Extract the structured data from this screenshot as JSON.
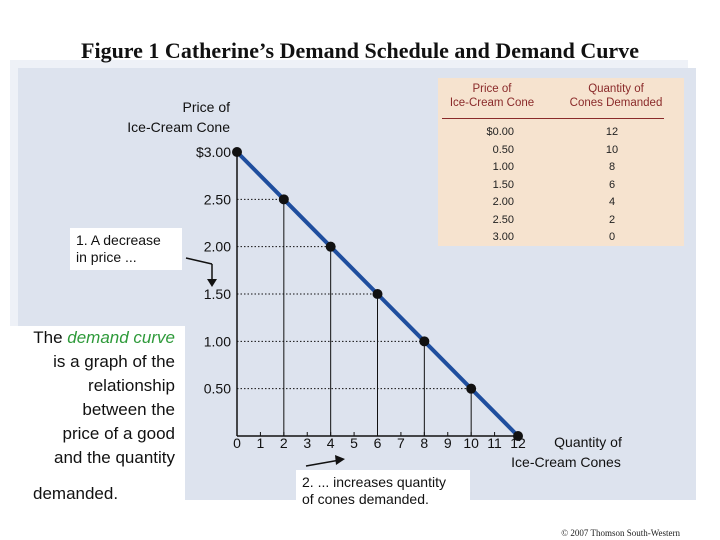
{
  "title": "Figure 1 Catherine’s Demand Schedule and Demand Curve",
  "table": {
    "header_price": [
      "Price of",
      "Ice-Cream Cone"
    ],
    "header_quantity": [
      "Quantity of",
      "Cones Demanded"
    ],
    "prices": [
      "$0.00",
      "0.50",
      "1.00",
      "1.50",
      "2.00",
      "2.50",
      "3.00"
    ],
    "quantities": [
      "12",
      "10",
      "8",
      "6",
      "4",
      "2",
      "0"
    ]
  },
  "notes": {
    "decrease_line1": "1. A decrease",
    "decrease_line2": "in price ...",
    "increase_line1": "2. ... increases quantity",
    "increase_line2": "of cones demanded."
  },
  "definition": {
    "prefix": "The ",
    "highlight": "demand curve",
    "rest": [
      "is a graph of the",
      "relationship",
      "between the",
      "price of a good",
      "and the quantity"
    ],
    "last": "demanded."
  },
  "copyright": "© 2007 Thomson South-Western",
  "colors": {
    "curve": "#1f4e9e",
    "point": "#111111",
    "panel": "#dde3ee",
    "table_bg": "#f6e3cf",
    "table_header": "#8a2a2a",
    "highlight": "#2e9a3a"
  },
  "chart_data": {
    "type": "line",
    "ylabel": [
      "Price of",
      "Ice-Cream Cone"
    ],
    "xlabel": [
      "Quantity of",
      "Ice-Cream Cones"
    ],
    "x_ticks": [
      "0",
      "1",
      "2",
      "3",
      "4",
      "5",
      "6",
      "7",
      "8",
      "9",
      "10",
      "11",
      "12"
    ],
    "y_tick_labels": [
      {
        "value": 3.0,
        "label": "$3.00"
      },
      {
        "value": 2.5,
        "label": "2.50"
      },
      {
        "value": 2.0,
        "label": "2.00"
      },
      {
        "value": 1.5,
        "label": "1.50"
      },
      {
        "value": 1.0,
        "label": "1.00"
      },
      {
        "value": 0.5,
        "label": "0.50"
      }
    ],
    "xlim": [
      0,
      12
    ],
    "ylim": [
      0,
      3.0
    ],
    "points": [
      {
        "quantity": 0,
        "price": 3.0
      },
      {
        "quantity": 2,
        "price": 2.5
      },
      {
        "quantity": 4,
        "price": 2.0
      },
      {
        "quantity": 6,
        "price": 1.5
      },
      {
        "quantity": 8,
        "price": 1.0
      },
      {
        "quantity": 10,
        "price": 0.5
      },
      {
        "quantity": 12,
        "price": 0.0
      }
    ]
  }
}
